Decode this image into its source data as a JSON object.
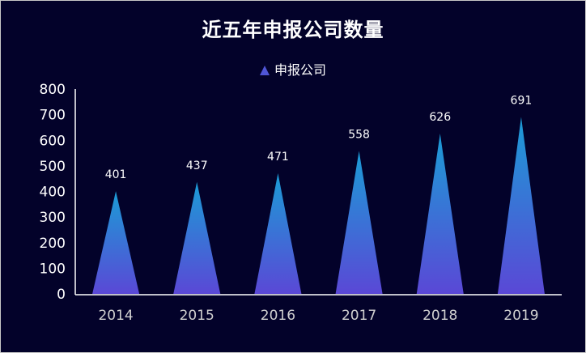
{
  "chart_data": {
    "type": "bar",
    "bar_shape": "triangle",
    "title": "近五年申报公司数量",
    "legend": [
      "申报公司"
    ],
    "legend_position": "top-center",
    "categories": [
      "2014",
      "2015",
      "2016",
      "2017",
      "2018",
      "2019"
    ],
    "series": [
      {
        "name": "申报公司",
        "values": [
          401,
          437,
          471,
          558,
          626,
          691
        ]
      }
    ],
    "xlabel": "",
    "ylabel": "",
    "ylim": [
      0,
      800
    ],
    "yticks": [
      0,
      100,
      200,
      300,
      400,
      500,
      600,
      700,
      800
    ],
    "grid": false,
    "show_data_labels": true
  },
  "colors": {
    "background": "#03022a",
    "bar_top": "#1b9cd6",
    "bar_bottom": "#5a48d6",
    "text": "#ffffff",
    "xtick_text": "#d0d0d0",
    "axis": "#ffffff"
  }
}
